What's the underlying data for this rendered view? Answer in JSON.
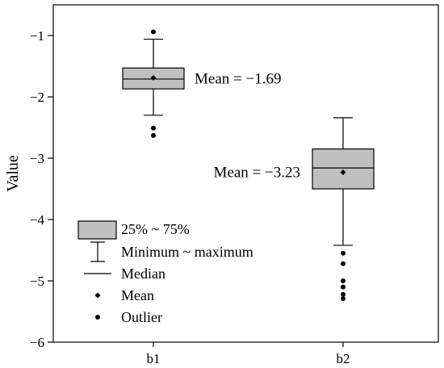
{
  "chart_data": {
    "type": "box",
    "ylabel": "Value",
    "xlabel": "",
    "ylim": [
      -6,
      -0.5
    ],
    "yticks": [
      -1,
      -2,
      -3,
      -4,
      -5,
      -6
    ],
    "ytick_labels": [
      "−1",
      "−2",
      "−3",
      "−4",
      "−5",
      "−6"
    ],
    "grid": false,
    "categories": [
      "b1",
      "b2"
    ],
    "boxes": [
      {
        "category": "b1",
        "min": -2.3,
        "q1": -1.87,
        "median": -1.71,
        "q3": -1.53,
        "max": -1.06,
        "mean": -1.69,
        "outliers": [
          -0.94,
          -2.51,
          -2.63
        ]
      },
      {
        "category": "b2",
        "min": -4.42,
        "q1": -3.5,
        "median": -3.16,
        "q3": -2.85,
        "max": -2.34,
        "mean": -3.23,
        "outliers": [
          -4.55,
          -4.72,
          -5.0,
          -5.1,
          -5.22,
          -5.29
        ]
      }
    ],
    "annotations": [
      {
        "text": "Mean = −1.69",
        "target": "b1"
      },
      {
        "text": "Mean = −3.23",
        "target": "b2"
      }
    ],
    "legend": {
      "placement": "bottom-left",
      "entries": [
        {
          "symbol": "box",
          "label": "25% ~ 75%"
        },
        {
          "symbol": "whisker",
          "label": "Minimum ~ maximum"
        },
        {
          "symbol": "line",
          "label": "Median"
        },
        {
          "symbol": "diamond",
          "label": "Mean"
        },
        {
          "symbol": "dot",
          "label": "Outlier"
        }
      ]
    },
    "colors": {
      "box_fill": "#c0c0c0",
      "stroke": "#000000"
    }
  }
}
